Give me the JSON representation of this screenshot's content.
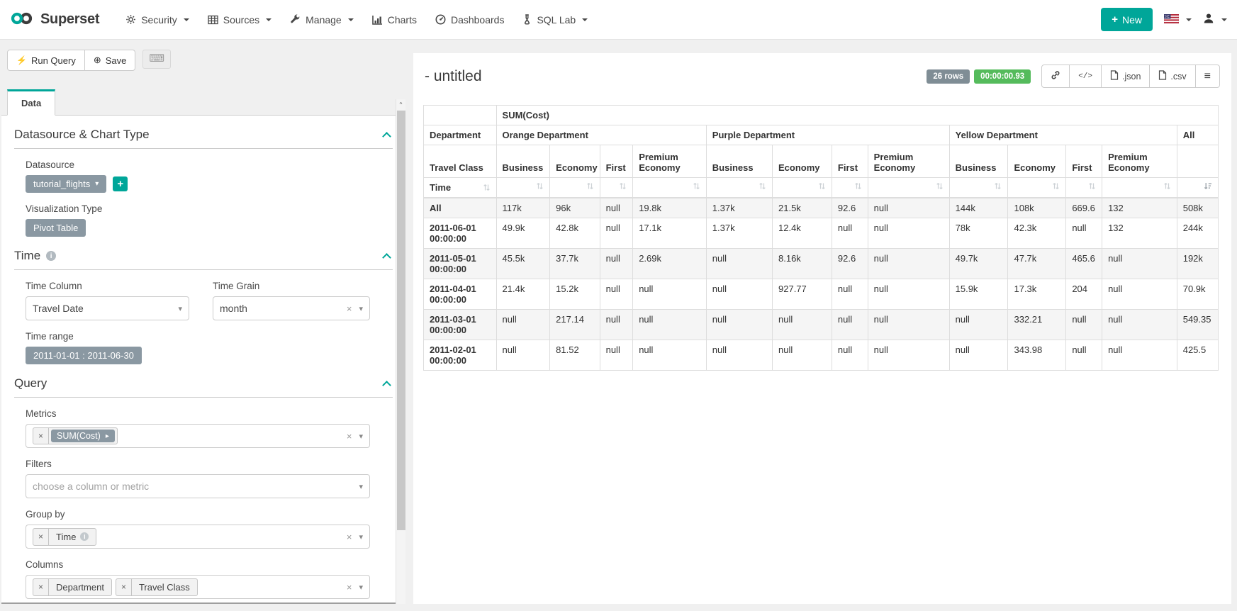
{
  "colors": {
    "accent": "#00a699",
    "badge_green": "#55bb5c",
    "badge_gray": "#7f8d95",
    "pill_gray": "#8a98a2"
  },
  "icons": {
    "close": "×",
    "caret_down": "▾",
    "caret_right": "▸",
    "plus": "+",
    "lightning": "⚡",
    "plus_circle": "⊕",
    "keyboard": "⌨",
    "sort": "⇅",
    "hamburger": "≡",
    "code": "</>",
    "info": "i",
    "scroll_up": "▲"
  },
  "navbar": {
    "brand": "Superset",
    "items": [
      {
        "label": "Security"
      },
      {
        "label": "Sources"
      },
      {
        "label": "Manage"
      },
      {
        "label": "Charts"
      },
      {
        "label": "Dashboards"
      },
      {
        "label": "SQL Lab"
      }
    ],
    "new_label": "New"
  },
  "toolbar": {
    "run_query": "Run Query",
    "save": "Save"
  },
  "panel": {
    "tab_label": "Data",
    "datasource_section": {
      "title": "Datasource & Chart Type",
      "datasource_label": "Datasource",
      "datasource_value": "tutorial_flights",
      "viz_type_label": "Visualization Type",
      "viz_type_value": "Pivot Table"
    },
    "time_section": {
      "title": "Time",
      "time_column_label": "Time Column",
      "time_column_value": "Travel Date",
      "time_grain_label": "Time Grain",
      "time_grain_value": "month",
      "time_range_label": "Time range",
      "time_range_value": "2011-01-01 : 2011-06-30"
    },
    "query_section": {
      "title": "Query",
      "metrics_label": "Metrics",
      "metrics_value": "SUM(Cost)",
      "filters_label": "Filters",
      "filters_placeholder": "choose a column or metric",
      "groupby_label": "Group by",
      "groupby_values": [
        "Time"
      ],
      "columns_label": "Columns",
      "columns_values": [
        "Department",
        "Travel Class"
      ]
    }
  },
  "results": {
    "title": "- untitled",
    "rows_badge": "26 rows",
    "duration_badge": "00:00:00.93",
    "json_label": ".json",
    "csv_label": ".csv"
  },
  "pivot": {
    "metric_header": "SUM(Cost)",
    "col_dimension_label": "Department",
    "col_groups": [
      "Orange Department",
      "Purple Department",
      "Yellow Department",
      "All"
    ],
    "row_dimension_label": "Travel Class",
    "travel_classes": [
      "Business",
      "Economy",
      "First",
      "Premium Economy"
    ],
    "time_label": "Time",
    "rows": [
      {
        "time": "All",
        "values": [
          "117k",
          "96k",
          "null",
          "19.8k",
          "1.37k",
          "21.5k",
          "92.6",
          "null",
          "144k",
          "108k",
          "669.6",
          "132",
          "508k"
        ]
      },
      {
        "time": "2011-06-01 00:00:00",
        "values": [
          "49.9k",
          "42.8k",
          "null",
          "17.1k",
          "1.37k",
          "12.4k",
          "null",
          "null",
          "78k",
          "42.3k",
          "null",
          "132",
          "244k"
        ]
      },
      {
        "time": "2011-05-01 00:00:00",
        "values": [
          "45.5k",
          "37.7k",
          "null",
          "2.69k",
          "null",
          "8.16k",
          "92.6",
          "null",
          "49.7k",
          "47.7k",
          "465.6",
          "null",
          "192k"
        ]
      },
      {
        "time": "2011-04-01 00:00:00",
        "values": [
          "21.4k",
          "15.2k",
          "null",
          "null",
          "null",
          "927.77",
          "null",
          "null",
          "15.9k",
          "17.3k",
          "204",
          "null",
          "70.9k"
        ]
      },
      {
        "time": "2011-03-01 00:00:00",
        "values": [
          "null",
          "217.14",
          "null",
          "null",
          "null",
          "null",
          "null",
          "null",
          "null",
          "332.21",
          "null",
          "null",
          "549.35"
        ]
      },
      {
        "time": "2011-02-01 00:00:00",
        "values": [
          "null",
          "81.52",
          "null",
          "null",
          "null",
          "null",
          "null",
          "null",
          "null",
          "343.98",
          "null",
          "null",
          "425.5"
        ]
      }
    ]
  }
}
